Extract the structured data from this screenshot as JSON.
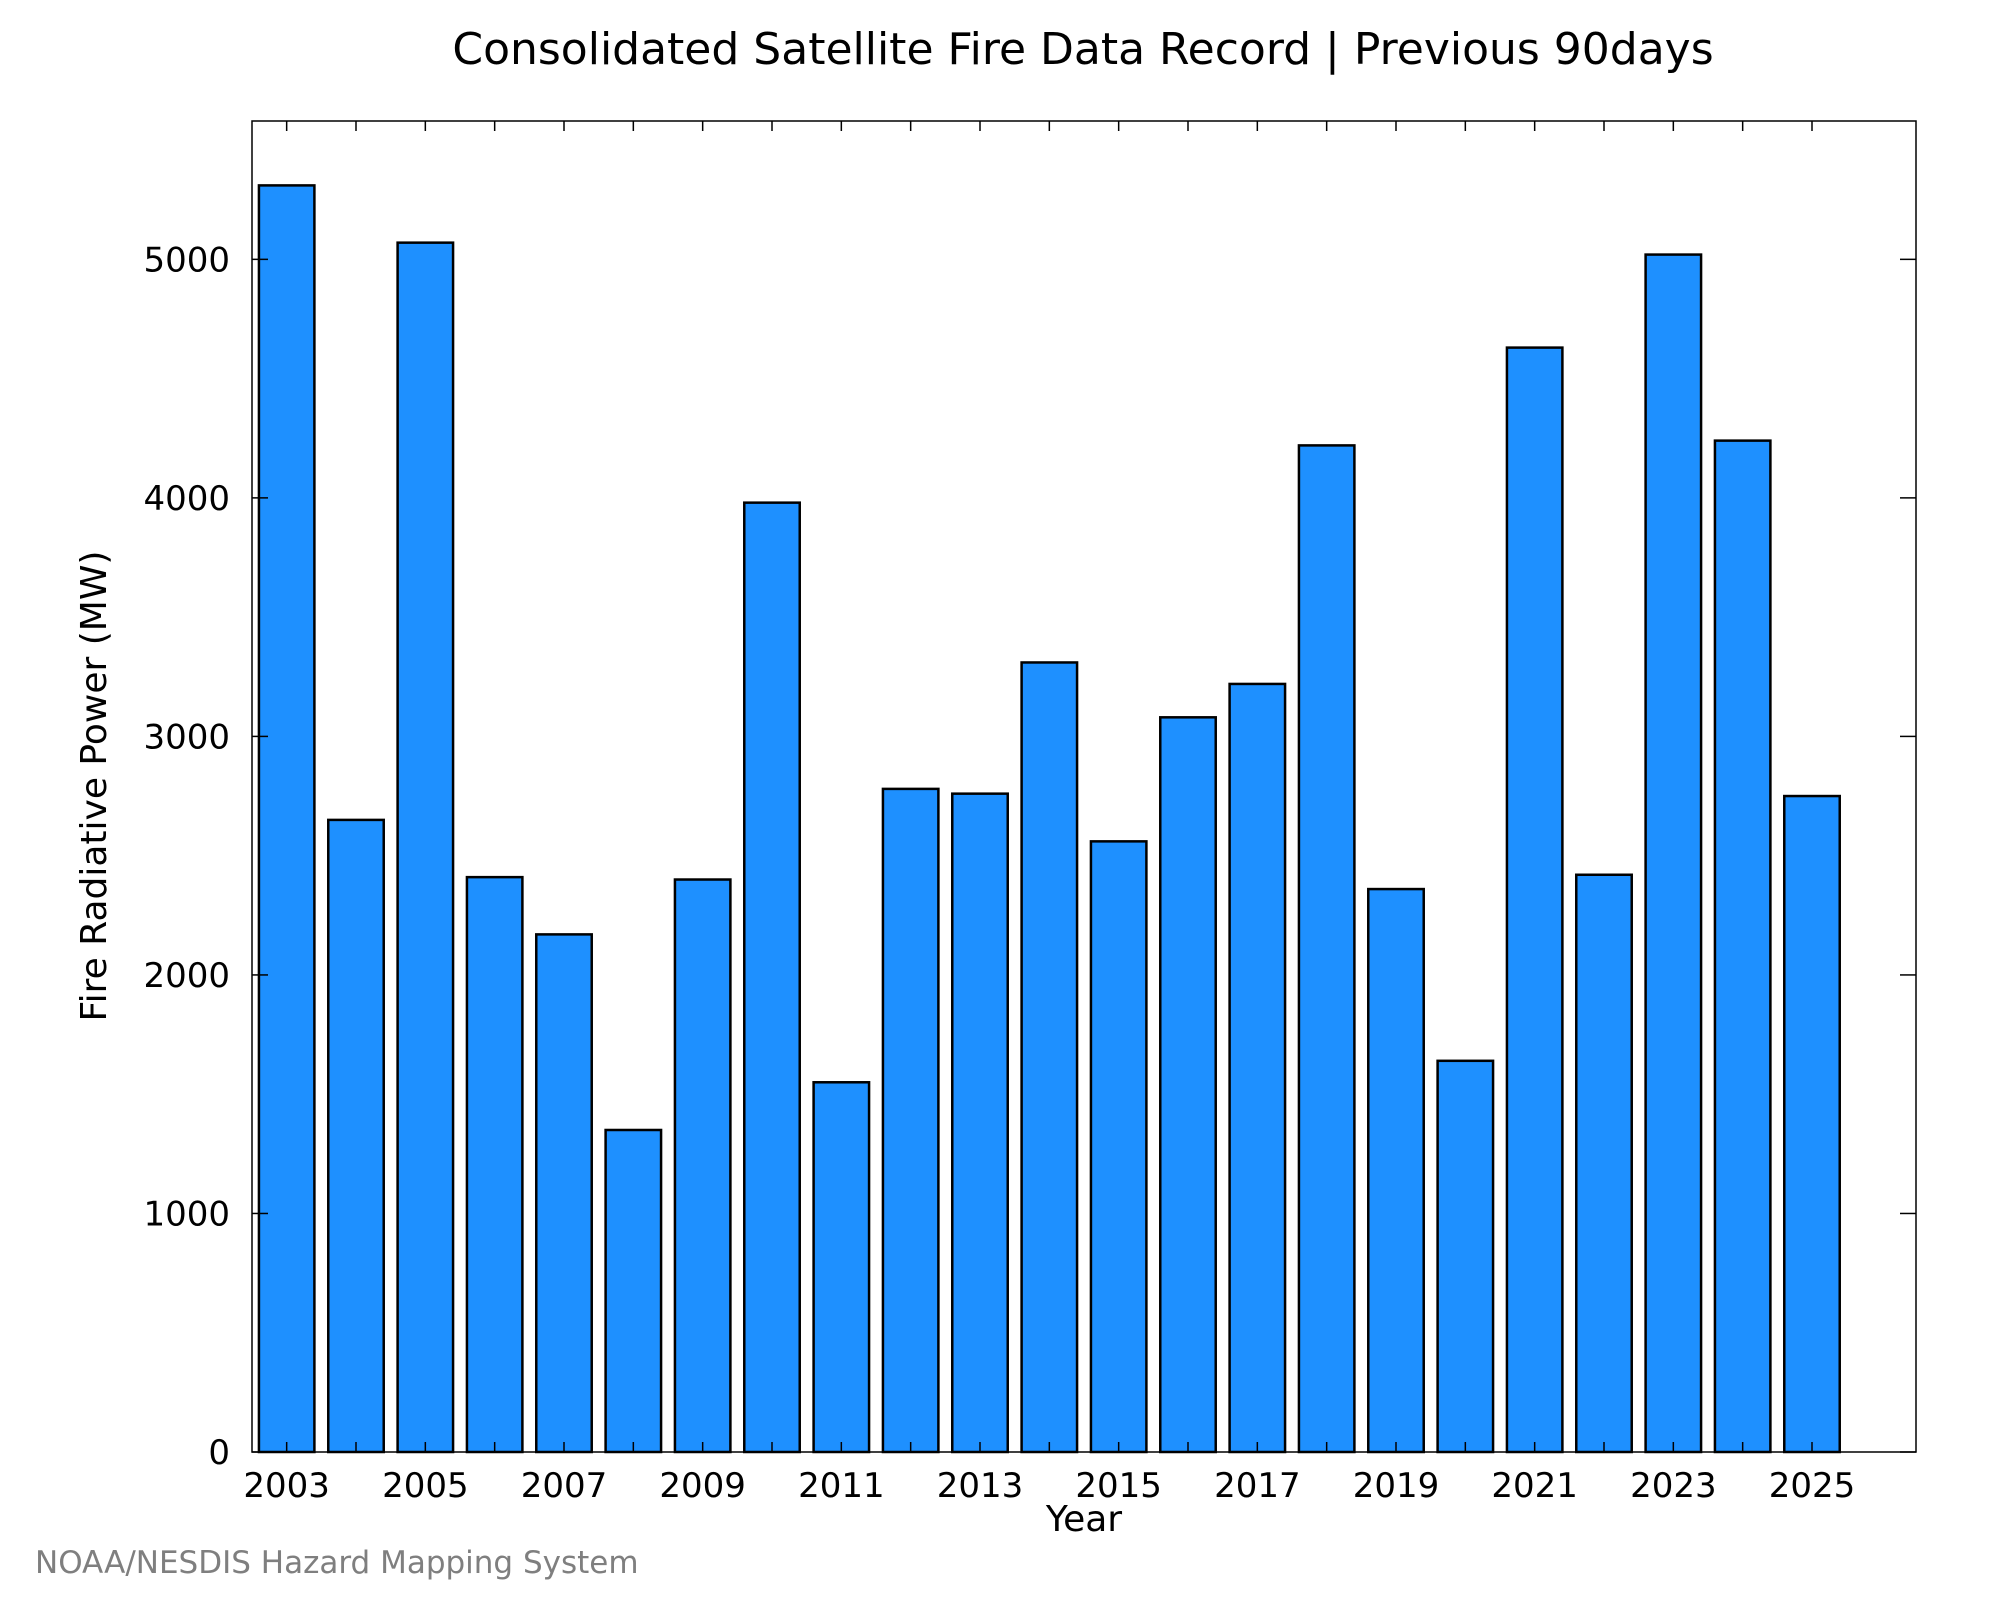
{
  "chart_data": {
    "type": "bar",
    "title": "Consolidated Satellite Fire Data Record | Previous 90days",
    "xlabel": "Year",
    "ylabel": "Fire Radiative Power (MW)",
    "footer": "NOAA/NESDIS Hazard Mapping System",
    "categories": [
      2003,
      2004,
      2005,
      2006,
      2007,
      2008,
      2009,
      2010,
      2011,
      2012,
      2013,
      2014,
      2015,
      2016,
      2017,
      2018,
      2019,
      2020,
      2021,
      2022,
      2023,
      2024,
      2025
    ],
    "values": [
      5310,
      2650,
      5070,
      2410,
      2170,
      1350,
      2400,
      3980,
      1550,
      2780,
      2760,
      3310,
      2560,
      3080,
      3220,
      4220,
      2360,
      1640,
      4630,
      2420,
      5020,
      4240,
      2750
    ],
    "xlim": [
      2002.5,
      2026.5
    ],
    "ylim": [
      0,
      5580
    ],
    "xticks": [
      "2003",
      "2005",
      "2007",
      "2009",
      "2011",
      "2013",
      "2015",
      "2017",
      "2019",
      "2021",
      "2023",
      "2025"
    ],
    "yticks": [
      "0",
      "1000",
      "2000",
      "3000",
      "4000",
      "5000"
    ],
    "bar_color": "#1e90ff",
    "bar_edge_color": "#000000",
    "grid": false,
    "legend": "none"
  }
}
